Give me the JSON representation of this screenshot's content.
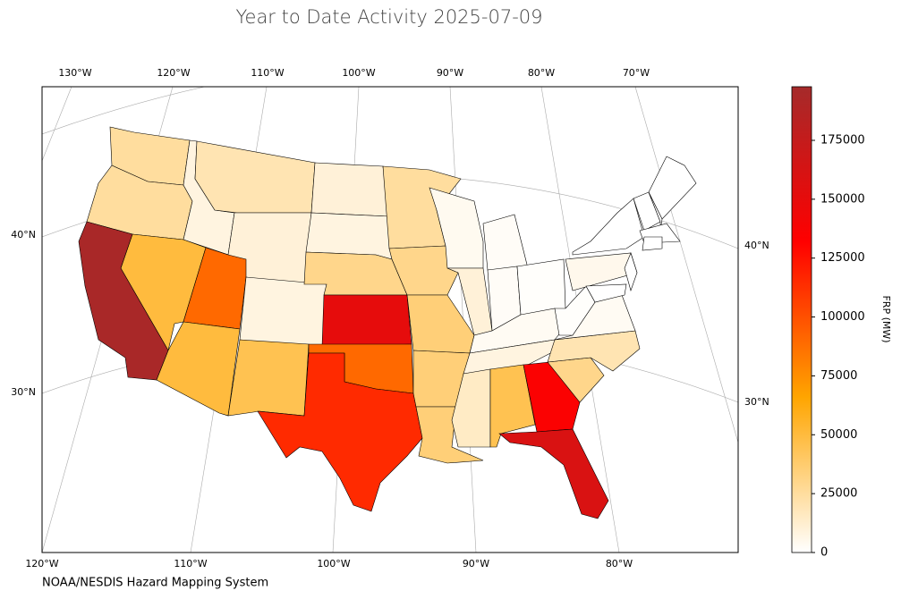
{
  "chart_data": {
    "type": "choropleth",
    "title": "Year to Date Activity 2025-07-09",
    "source": "NOAA/NESDIS Hazard Mapping System",
    "colorbar_label": "FRP (MW)",
    "colormap": [
      "#ffffff",
      "#ffa500",
      "#ff0000",
      "#a52a2a"
    ],
    "ylim": [
      0,
      197770
    ],
    "yticks": [
      0,
      25000,
      50000,
      75000,
      100000,
      125000,
      150000,
      175000
    ],
    "lon_labels_top": [
      "130°W",
      "120°W",
      "110°W",
      "100°W",
      "90°W",
      "80°W",
      "70°W"
    ],
    "lon_labels_bottom": [
      "120°W",
      "110°W",
      "100°W",
      "90°W",
      "80°W"
    ],
    "lat_labels_left": [
      "40°N",
      "30°N"
    ],
    "lat_labels_right": [
      "40°N",
      "30°N"
    ],
    "values": [
      25000,
      25000,
      8000,
      20000,
      10000,
      50000,
      195000,
      90000,
      50000,
      8000,
      45000,
      10000,
      8000,
      30000,
      150000,
      90000,
      115000,
      25000,
      30000,
      35000,
      35000,
      35000,
      4000,
      10000,
      2000,
      2000,
      1000,
      3000,
      8000,
      15000,
      45000,
      135000,
      160000,
      30000,
      20000,
      3000,
      1000,
      5000,
      0,
      0,
      0,
      0,
      0,
      0,
      0,
      0
    ]
  }
}
